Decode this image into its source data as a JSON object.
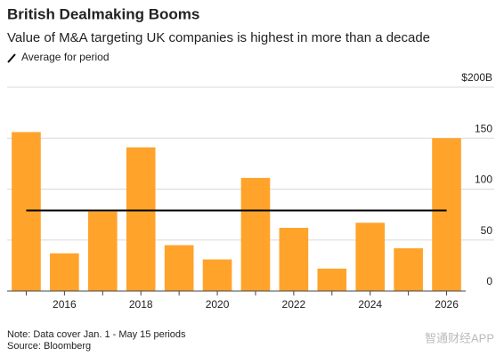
{
  "chart_data": {
    "type": "bar",
    "title": "British Dealmaking Booms",
    "subtitle": "Value of M&A targeting UK companies is highest in more than a decade",
    "legend_label": "Average for period",
    "categories": [
      null,
      "2016",
      null,
      "2018",
      null,
      "2020",
      null,
      "2022",
      null,
      "2024",
      null,
      "2026"
    ],
    "values": [
      156,
      37,
      78,
      141,
      45,
      31,
      111,
      62,
      22,
      67,
      42,
      150
    ],
    "color": "#ffa32b",
    "average": 79,
    "average_color": "#000000",
    "ylim": [
      0,
      200
    ],
    "yticks": [
      0,
      50,
      100,
      150,
      {
        "value": 200,
        "label": "$200B"
      }
    ],
    "grid": true,
    "notes": [
      "Note: Data cover Jan. 1 - May 15 periods",
      "Source: Bloomberg"
    ],
    "watermark": "智通财经APP"
  }
}
